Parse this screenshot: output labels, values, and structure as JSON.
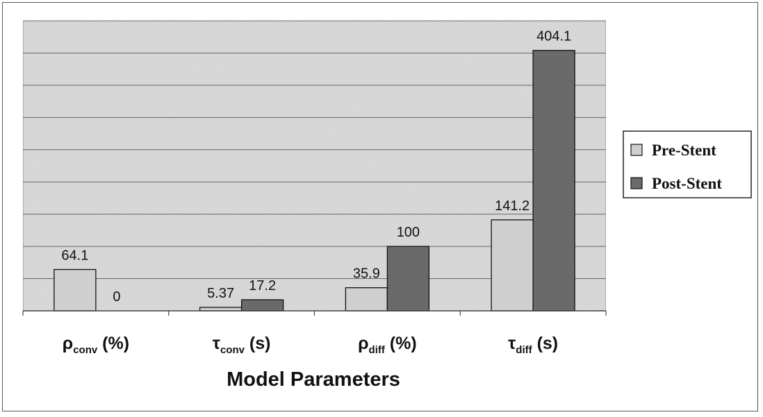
{
  "chart_data": {
    "type": "bar",
    "title": "",
    "xlabel": "Model Parameters",
    "ylabel": "",
    "ylim": [
      0,
      450
    ],
    "y_gridline_step": 50,
    "grid": true,
    "y_tick_labels_shown": false,
    "legend_position": "right",
    "categories": [
      {
        "symbol": "ρ",
        "sub": "conv",
        "unit": " (%)"
      },
      {
        "symbol": "τ",
        "sub": "conv",
        "unit": " (s)"
      },
      {
        "symbol": "ρ",
        "sub": "diff",
        "unit": " (%)"
      },
      {
        "symbol": "τ",
        "sub": "diff",
        "unit": " (s)"
      }
    ],
    "series": [
      {
        "name": "Pre-Stent",
        "values": [
          64.1,
          5.37,
          35.9,
          141.2
        ],
        "labels": [
          "64.1",
          "5.37",
          "35.9",
          "141.2"
        ],
        "color": "#cfcfcf"
      },
      {
        "name": "Post-Stent",
        "values": [
          0,
          17.2,
          100,
          404.1
        ],
        "labels": [
          "0",
          "17.2",
          "100",
          "404.1"
        ],
        "color": "#6a6a6a"
      }
    ],
    "plot_background": "#d9d9d9",
    "gridline_color": "#666666"
  }
}
